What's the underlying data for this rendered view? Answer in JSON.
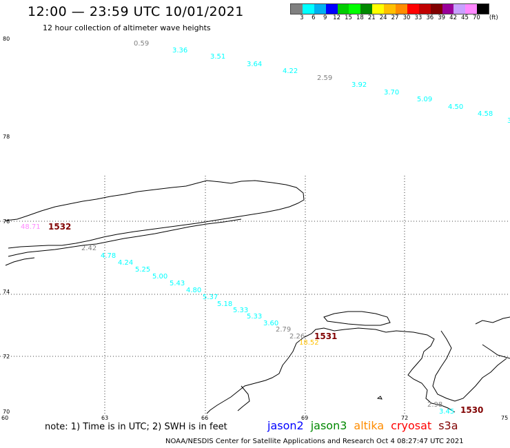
{
  "header": {
    "title": "12:00 — 23:59 UTC 10/01/2021",
    "subtitle": "12 hour collection of altimeter wave heights"
  },
  "legend": {
    "unit": "(ft)",
    "colors": [
      "#808080",
      "#00ffff",
      "#00b0f0",
      "#0000ff",
      "#00cc00",
      "#00ff00",
      "#008800",
      "#ffff00",
      "#ffc000",
      "#ff8c00",
      "#ff0000",
      "#c00000",
      "#800000",
      "#990099",
      "#c8a0ff",
      "#ff88ff",
      "#000000"
    ],
    "ticks": [
      "3",
      "6",
      "9",
      "12",
      "15",
      "18",
      "21",
      "24",
      "27",
      "30",
      "33",
      "36",
      "39",
      "42",
      "45",
      "70"
    ]
  },
  "map": {
    "lat_labels": [
      "80",
      "78",
      "76",
      "74",
      "72",
      "70"
    ],
    "lon_labels": [
      "60",
      "63",
      "66",
      "69",
      "72",
      "75"
    ],
    "track_north": [
      {
        "v": "0.59",
        "c": "#808080"
      },
      {
        "v": "3.36",
        "c": "#00ffff"
      },
      {
        "v": "3.51",
        "c": "#00ffff"
      },
      {
        "v": "3.64",
        "c": "#00ffff"
      },
      {
        "v": "4.22",
        "c": "#00ffff"
      },
      {
        "v": "2.59",
        "c": "#808080"
      },
      {
        "v": "3.92",
        "c": "#00ffff"
      },
      {
        "v": "3.70",
        "c": "#00ffff"
      },
      {
        "v": "5.09",
        "c": "#00ffff"
      },
      {
        "v": "4.50",
        "c": "#00ffff"
      },
      {
        "v": "4.58",
        "c": "#00ffff"
      },
      {
        "v": "3",
        "c": "#00ffff"
      }
    ],
    "track_mid": [
      {
        "v": "48.71",
        "c": "#ff88ff"
      },
      {
        "v": "1532",
        "c": "#800000"
      },
      {
        "v": "2.42",
        "c": "#808080"
      },
      {
        "v": "4.78",
        "c": "#00ffff"
      },
      {
        "v": "4.24",
        "c": "#00ffff"
      },
      {
        "v": "5.25",
        "c": "#00ffff"
      },
      {
        "v": "5.00",
        "c": "#00ffff"
      },
      {
        "v": "5.43",
        "c": "#00ffff"
      },
      {
        "v": "4.80",
        "c": "#00ffff"
      },
      {
        "v": "5.37",
        "c": "#00ffff"
      },
      {
        "v": "5.18",
        "c": "#00ffff"
      },
      {
        "v": "5.33",
        "c": "#00ffff"
      },
      {
        "v": "5.33",
        "c": "#00ffff"
      },
      {
        "v": "3.60",
        "c": "#00ffff"
      },
      {
        "v": "2.79",
        "c": "#808080"
      },
      {
        "v": "2.26",
        "c": "#808080"
      },
      {
        "v": "1531",
        "c": "#800000"
      },
      {
        "v": "18.52",
        "c": "#ffc000"
      }
    ],
    "track_se": [
      {
        "v": "2.98",
        "c": "#808080"
      },
      {
        "v": "3.45",
        "c": "#00ffff"
      },
      {
        "v": "1530",
        "c": "#800000"
      }
    ]
  },
  "footer": {
    "note": "note:  1) Time is in UTC;  2) SWH is in feet",
    "satellites": [
      {
        "name": "jason2",
        "color": "#0000ff"
      },
      {
        "name": "jason3",
        "color": "#008800"
      },
      {
        "name": "altika",
        "color": "#ff8c00"
      },
      {
        "name": "cryosat",
        "color": "#ff0000"
      },
      {
        "name": "s3a",
        "color": "#800000"
      }
    ],
    "credit": "NOAA/NESDIS Center for Satellite Applications and Research    Oct  4 08:27:47 UTC 2021"
  }
}
